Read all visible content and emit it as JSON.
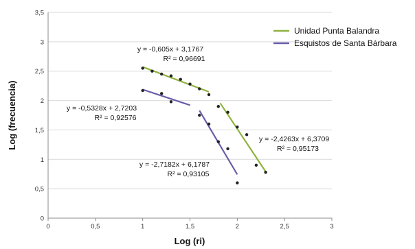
{
  "chart_data": {
    "type": "scatter",
    "title": "",
    "xlabel": "Log (ri)",
    "ylabel": "Log (frecuencia)",
    "xlim": [
      0,
      3
    ],
    "ylim": [
      0,
      3.5
    ],
    "x_ticks": [
      "0",
      "0,5",
      "1",
      "1,5",
      "2",
      "2,5",
      "3"
    ],
    "y_ticks": [
      "0",
      "0,5",
      "1",
      "1,5",
      "2",
      "2,5",
      "3",
      "3,5"
    ],
    "grid": "horizontal",
    "legend_position": "top-right",
    "series": [
      {
        "name": "Unidad Punta Balandra",
        "color": "#8fb23d",
        "points": [
          {
            "x": 1.0,
            "y": 2.55
          },
          {
            "x": 1.1,
            "y": 2.5
          },
          {
            "x": 1.2,
            "y": 2.45
          },
          {
            "x": 1.3,
            "y": 2.42
          },
          {
            "x": 1.4,
            "y": 2.36
          },
          {
            "x": 1.5,
            "y": 2.28
          },
          {
            "x": 1.6,
            "y": 2.2
          },
          {
            "x": 1.7,
            "y": 2.1
          },
          {
            "x": 1.8,
            "y": 1.9
          },
          {
            "x": 1.9,
            "y": 1.8
          },
          {
            "x": 2.0,
            "y": 1.55
          },
          {
            "x": 2.1,
            "y": 1.42
          },
          {
            "x": 2.2,
            "y": 0.9
          },
          {
            "x": 2.3,
            "y": 0.78
          }
        ],
        "fits": [
          {
            "equation": "y = -0,605x + 3,1767",
            "r2": "R² = 0,96691",
            "slope": -0.605,
            "intercept": 3.1767,
            "x_range": [
              1.0,
              1.7
            ]
          },
          {
            "equation": "y = -2,4263x + 6,3709",
            "r2": "R² = 0,95173",
            "slope": -2.4263,
            "intercept": 6.3709,
            "x_range": [
              1.82,
              2.3
            ]
          }
        ]
      },
      {
        "name": "Esquistos de Santa Bárbara",
        "color": "#6a5ba8",
        "points": [
          {
            "x": 1.0,
            "y": 2.17
          },
          {
            "x": 1.2,
            "y": 2.12
          },
          {
            "x": 1.3,
            "y": 1.98
          },
          {
            "x": 1.6,
            "y": 1.75
          },
          {
            "x": 1.7,
            "y": 1.6
          },
          {
            "x": 1.8,
            "y": 1.3
          },
          {
            "x": 1.9,
            "y": 1.18
          },
          {
            "x": 2.0,
            "y": 0.6
          }
        ],
        "fits": [
          {
            "equation": "y = -0,5328x + 2,7203",
            "r2": "R² = 0,92576",
            "slope": -0.5328,
            "intercept": 2.7203,
            "x_range": [
              1.0,
              1.5
            ]
          },
          {
            "equation": "y = -2,7182x + 6,1787",
            "r2": "R² = 0,93105",
            "slope": -2.7182,
            "intercept": 6.1787,
            "x_range": [
              1.6,
              2.0
            ]
          }
        ]
      }
    ]
  }
}
